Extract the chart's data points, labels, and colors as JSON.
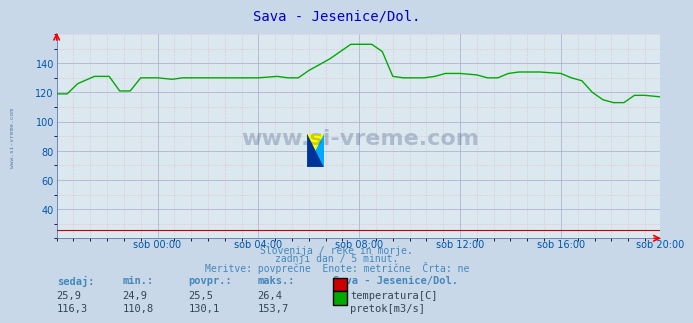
{
  "title": "Sava - Jesenice/Dol.",
  "title_color": "#0000cc",
  "bg_color": "#c8d8e8",
  "plot_bg_color": "#dce8f0",
  "xlabel_color": "#0055aa",
  "text_color": "#4488bb",
  "temp_color": "#cc0000",
  "flow_color": "#00aa00",
  "x_tick_labels": [
    "sob 00:00",
    "sob 04:00",
    "sob 08:00",
    "sob 12:00",
    "sob 16:00",
    "sob 20:00"
  ],
  "x_tick_positions": [
    48,
    96,
    144,
    192,
    240,
    287
  ],
  "ylim": [
    20,
    160
  ],
  "yticks": [
    40,
    60,
    80,
    100,
    120,
    140
  ],
  "footer_lines": [
    "Slovenija / reke in morje.",
    "zadnji dan / 5 minut.",
    "Meritve: povprečne  Enote: metrične  Črta: ne"
  ],
  "table_headers": [
    "sedaj:",
    "min.:",
    "povpr.:",
    "maks.:"
  ],
  "table_row1": [
    "25,9",
    "24,9",
    "25,5",
    "26,4"
  ],
  "table_row2": [
    "116,3",
    "110,8",
    "130,1",
    "153,7"
  ],
  "station_label": "Sava - Jesenice/Dol.",
  "legend_temp": "temperatura[C]",
  "legend_flow": "pretok[m3/s]",
  "n_points": 288,
  "watermark": "www.si-vreme.com",
  "left_label": "www.si-vreme.com"
}
